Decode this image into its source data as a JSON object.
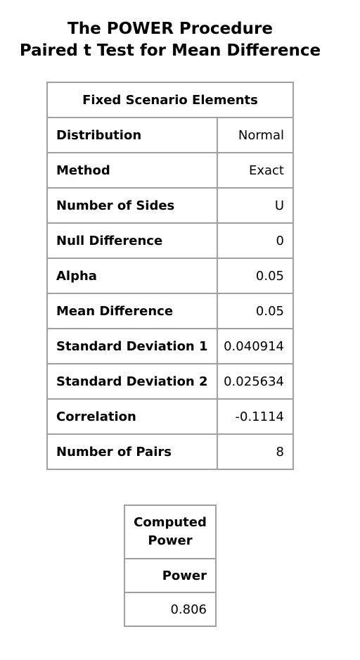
{
  "titles": {
    "line1": "The POWER Procedure",
    "line2": "Paired t Test for Mean Difference"
  },
  "fixed_scenario": {
    "caption": "Fixed Scenario Elements",
    "rows": [
      {
        "label": "Distribution",
        "value": "Normal"
      },
      {
        "label": "Method",
        "value": "Exact"
      },
      {
        "label": "Number of Sides",
        "value": "U"
      },
      {
        "label": "Null Difference",
        "value": "0"
      },
      {
        "label": "Alpha",
        "value": "0.05"
      },
      {
        "label": "Mean Difference",
        "value": "0.05"
      },
      {
        "label": "Standard Deviation 1",
        "value": "0.040914"
      },
      {
        "label": "Standard Deviation 2",
        "value": "0.025634"
      },
      {
        "label": "Correlation",
        "value": "-0.1114"
      },
      {
        "label": "Number of Pairs",
        "value": "8"
      }
    ]
  },
  "computed_power": {
    "caption_line1": "Computed",
    "caption_line2": "Power",
    "column_header": "Power",
    "value": "0.806"
  }
}
